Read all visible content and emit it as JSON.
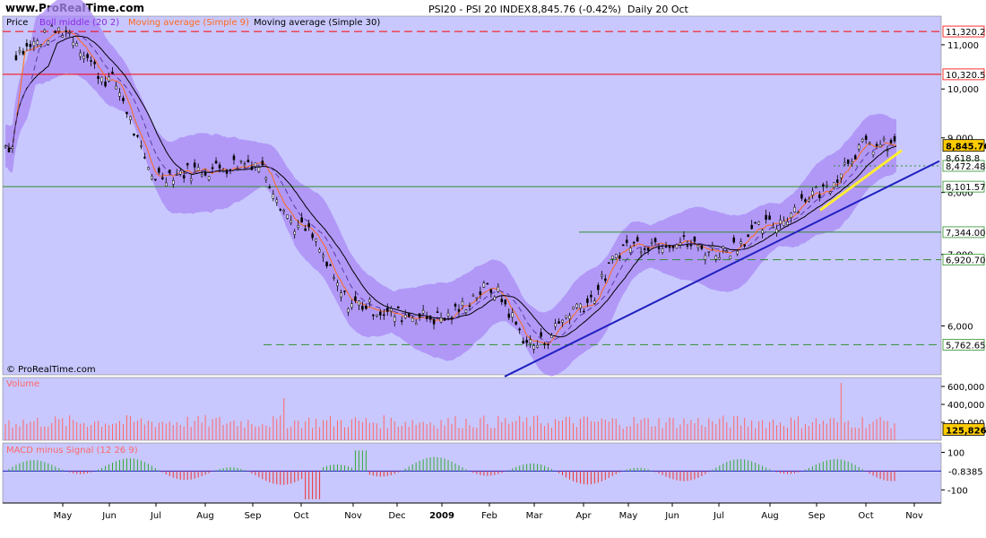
{
  "header": {
    "site": "www.ProRealTime.com",
    "instrument": "PSI20 - PSI 20 INDEX",
    "last": "8,845.76 (-0.42%)",
    "period": "Daily 20 Oct"
  },
  "legend": {
    "price": "Price",
    "boll": "Boll middle (20 2)",
    "ma9": "Moving average (Simple 9)",
    "ma30": "Moving average (Simple 30)"
  },
  "watermark": "© ProRealTime.com",
  "panels": {
    "volume": "Volume",
    "macd": "MACD minus Signal (12 26 9)"
  },
  "colors": {
    "panel_bg": "#c8c8ff",
    "band_fill": "#aa88f4",
    "candle": "#000000",
    "ma9": "#ff6a1a",
    "ma30": "#000000",
    "trendline": "#2020c0",
    "uptrend": "#ffee33",
    "volume": "#ff6666",
    "macd_pos": "#33aa33",
    "macd_neg": "#ee3333"
  },
  "chart_data": {
    "type": "line",
    "title": "PSI20 - PSI 20 INDEX",
    "scale": "log",
    "ylim": [
      5400,
      11700
    ],
    "x": [
      "May",
      "Jun",
      "Jul",
      "Aug",
      "Sep",
      "Oct",
      "Nov",
      "Dec",
      "2009",
      "Feb",
      "Mar",
      "Apr",
      "May",
      "Jun",
      "Jul",
      "Aug",
      "Sep",
      "Oct",
      "Nov"
    ],
    "y_ticks": [
      "11,000",
      "10,000",
      "9,000",
      "8,000",
      "7,000",
      "6,000"
    ],
    "series": [
      {
        "name": "Price",
        "x": [
          "Apr",
          "May",
          "Jun",
          "Jul",
          "Aug",
          "Sep",
          "Oct",
          "Nov",
          "Dec",
          "2009",
          "Feb",
          "Mar",
          "Apr",
          "May",
          "Jun",
          "Jul",
          "Aug",
          "Sep",
          "Oct"
        ],
        "values": [
          10800,
          11350,
          10200,
          8300,
          8400,
          8550,
          7400,
          6300,
          6150,
          6100,
          6500,
          5760,
          6300,
          7150,
          7200,
          7050,
          7450,
          8000,
          8845.76
        ]
      }
    ],
    "levels": [
      {
        "label": "11,320.20",
        "value": 11320.2,
        "color": "#ff0000",
        "style": "dashed"
      },
      {
        "label": "10,320.50",
        "value": 10320.5,
        "color": "#ff0000",
        "style": "solid"
      },
      {
        "label": "8,472.48",
        "value": 8472.48,
        "color": "#2f8f2f",
        "style": "dotted"
      },
      {
        "label": "8,101.57",
        "value": 8101.57,
        "color": "#2f8f2f",
        "style": "solid"
      },
      {
        "label": "7,344.00",
        "value": 7344.0,
        "color": "#2f8f2f",
        "style": "solid"
      },
      {
        "label": "6,920.70",
        "value": 6920.7,
        "color": "#2f8f2f",
        "style": "dashed"
      },
      {
        "label": "5,762.65",
        "value": 5762.65,
        "color": "#2f8f2f",
        "style": "dashed"
      }
    ],
    "last_price_label": "8,845.76",
    "ma_label": "8,618.8",
    "volume": {
      "y_ticks": [
        "600,000",
        "400,000",
        "200,000"
      ],
      "ylim": [
        0,
        700000
      ],
      "last_label": "125,826"
    },
    "macd": {
      "y_ticks": [
        "100",
        "-100"
      ],
      "ylim": [
        -170,
        150
      ],
      "last_label": "-0.8385"
    }
  }
}
